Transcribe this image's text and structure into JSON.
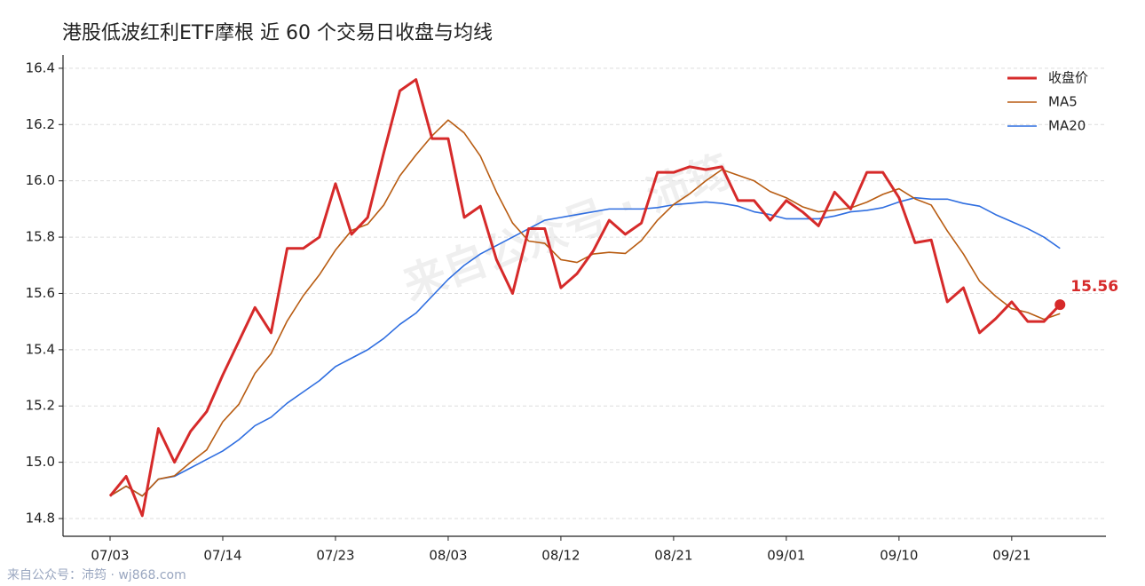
{
  "chart_data": {
    "type": "line",
    "title": "港股低波红利ETF摩根 近 60 个交易日收盘与均线",
    "watermark": "来自公众号 · 沛筠",
    "footer": "来自公众号：沛筠 · wj868.com",
    "categories": [
      "07/03",
      null,
      null,
      null,
      null,
      null,
      null,
      "07/14",
      null,
      null,
      null,
      null,
      null,
      null,
      "07/23",
      null,
      null,
      null,
      null,
      null,
      null,
      "08/03",
      null,
      null,
      null,
      null,
      null,
      null,
      "08/12",
      null,
      null,
      null,
      null,
      null,
      null,
      "08/21",
      null,
      null,
      null,
      null,
      null,
      null,
      "09/01",
      null,
      null,
      null,
      null,
      null,
      null,
      "09/10",
      null,
      null,
      null,
      null,
      null,
      null,
      "09/21",
      null,
      null,
      null
    ],
    "series": [
      {
        "name": "收盘价",
        "color": "#d62a2a",
        "values": [
          14.88,
          14.95,
          14.81,
          15.12,
          15.0,
          15.11,
          15.18,
          15.31,
          15.43,
          15.55,
          15.46,
          15.76,
          15.76,
          15.8,
          15.99,
          15.81,
          15.87,
          16.1,
          16.32,
          16.36,
          16.15,
          16.15,
          15.87,
          15.91,
          15.72,
          15.6,
          15.83,
          15.83,
          15.62,
          15.67,
          15.75,
          15.86,
          15.81,
          15.85,
          16.03,
          16.03,
          16.05,
          16.04,
          16.05,
          15.93,
          15.93,
          15.86,
          15.93,
          15.89,
          15.84,
          15.96,
          15.9,
          16.03,
          16.03,
          15.94,
          15.78,
          15.79,
          15.57,
          15.62,
          15.46,
          15.51,
          15.57,
          15.5,
          15.5,
          15.56
        ]
      },
      {
        "name": "MA5",
        "color": "#b85c12",
        "values": [
          14.88,
          14.915,
          14.88,
          14.94,
          14.952,
          15.0,
          15.044,
          15.144,
          15.206,
          15.316,
          15.386,
          15.502,
          15.592,
          15.666,
          15.754,
          15.824,
          15.846,
          15.914,
          16.018,
          16.092,
          16.16,
          16.216,
          16.17,
          16.088,
          15.96,
          15.85,
          15.786,
          15.778,
          15.72,
          15.71,
          15.74,
          15.746,
          15.742,
          15.788,
          15.86,
          15.916,
          15.954,
          16.0,
          16.04,
          16.02,
          16.0,
          15.962,
          15.94,
          15.908,
          15.89,
          15.896,
          15.904,
          15.924,
          15.952,
          15.972,
          15.936,
          15.914,
          15.822,
          15.74,
          15.644,
          15.59,
          15.546,
          15.532,
          15.508,
          15.528
        ]
      },
      {
        "name": "MA20",
        "color": "#2f6ee0",
        "values": [
          14.88,
          14.915,
          14.88,
          14.94,
          14.95,
          14.98,
          15.01,
          15.04,
          15.08,
          15.13,
          15.16,
          15.21,
          15.25,
          15.29,
          15.34,
          15.37,
          15.4,
          15.44,
          15.49,
          15.53,
          15.59,
          15.65,
          15.7,
          15.74,
          15.77,
          15.8,
          15.83,
          15.86,
          15.87,
          15.88,
          15.89,
          15.9,
          15.9,
          15.9,
          15.905,
          15.915,
          15.92,
          15.925,
          15.92,
          15.91,
          15.89,
          15.88,
          15.865,
          15.865,
          15.865,
          15.875,
          15.89,
          15.895,
          15.905,
          15.925,
          15.94,
          15.935,
          15.935,
          15.92,
          15.91,
          15.88,
          15.855,
          15.83,
          15.8,
          15.76
        ]
      }
    ],
    "ylim": [
      14.737,
      16.447
    ],
    "yticks": [
      {
        "value": 14.8,
        "label": "14.8"
      },
      {
        "value": 15.0,
        "label": "15.0"
      },
      {
        "value": 15.2,
        "label": "15.2"
      },
      {
        "value": 15.4,
        "label": "15.4"
      },
      {
        "value": 15.6,
        "label": "15.6"
      },
      {
        "value": 15.8,
        "label": "15.8"
      },
      {
        "value": 16.0,
        "label": "16.0"
      },
      {
        "value": 16.2,
        "label": "16.2"
      },
      {
        "value": 16.4,
        "label": "16.4"
      }
    ],
    "grid": true,
    "legend": "upper right"
  }
}
